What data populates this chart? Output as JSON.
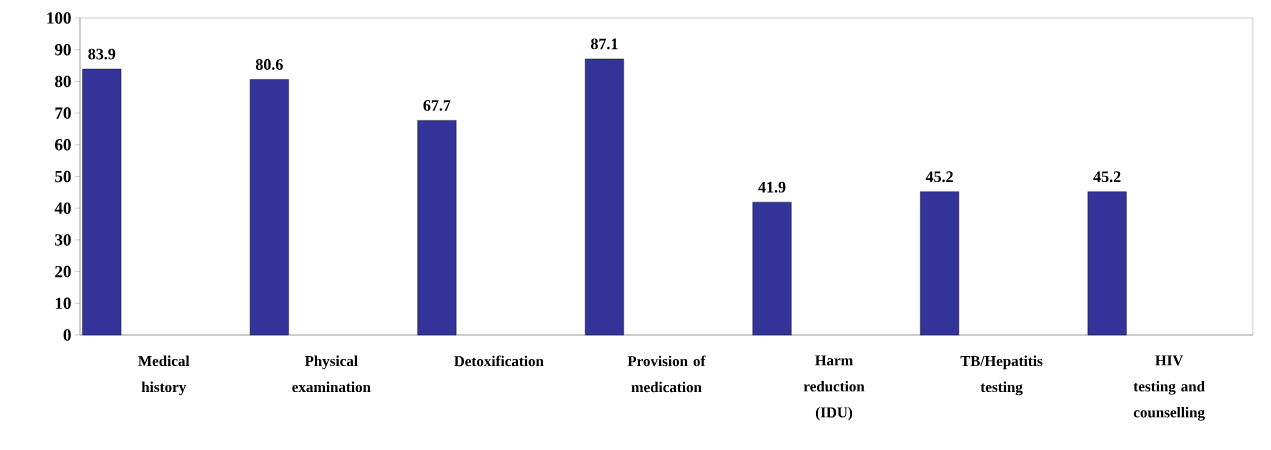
{
  "chart_data": {
    "type": "bar",
    "categories": [
      "Medical history",
      "Physical examination",
      "Detoxification",
      "Provision of medication",
      "Harm reduction (IDU)",
      "TB/Hepatitis testing",
      "HIV testing and counselling"
    ],
    "values": [
      83.9,
      80.6,
      67.7,
      87.1,
      41.9,
      45.2,
      45.2
    ],
    "color": "#333399",
    "ylim": [
      0,
      100
    ],
    "yticks": [
      0,
      10,
      20,
      30,
      40,
      50,
      60,
      70,
      80,
      90,
      100
    ],
    "data_labels": true
  }
}
